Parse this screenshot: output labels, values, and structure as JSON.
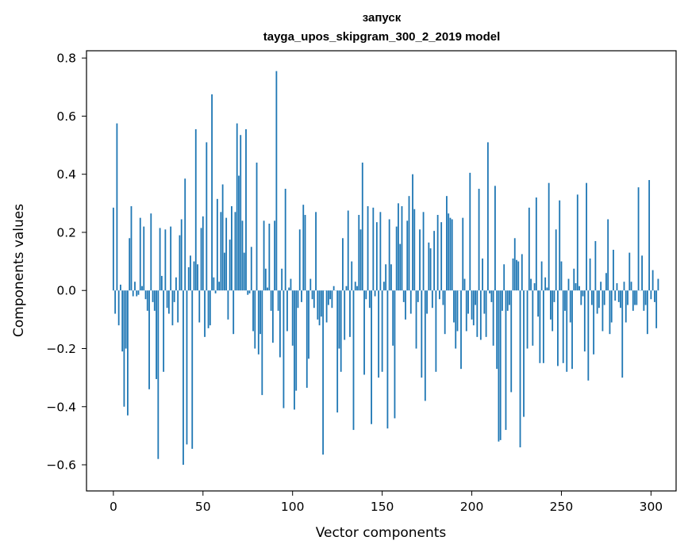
{
  "chart_data": {
    "type": "bar",
    "title": "запуск",
    "subtitle": "tayga_upos_skipgram_300_2_2019 model",
    "xlabel": "Vector components",
    "ylabel": "Components values",
    "xlim": [
      -15,
      314
    ],
    "ylim": [
      -0.69,
      0.825
    ],
    "xticks": [
      0,
      50,
      100,
      150,
      200,
      250,
      300
    ],
    "yticks": [
      -0.6,
      -0.4,
      -0.2,
      0.0,
      0.2,
      0.4,
      0.6,
      0.8
    ],
    "ytick_labels": [
      "−0.6",
      "−0.4",
      "−0.2",
      "0.0",
      "0.2",
      "0.4",
      "0.6",
      "0.8"
    ],
    "bar_color": "#1f77b4",
    "grid": false,
    "legend": "none",
    "values": [
      0.285,
      -0.08,
      0.575,
      -0.12,
      0.02,
      -0.21,
      -0.4,
      -0.2,
      -0.43,
      0.18,
      0.29,
      -0.02,
      0.03,
      -0.02,
      -0.015,
      0.25,
      0.015,
      0.22,
      -0.03,
      -0.07,
      -0.34,
      0.265,
      -0.04,
      -0.07,
      -0.305,
      -0.58,
      0.215,
      0.05,
      -0.28,
      0.21,
      -0.06,
      -0.08,
      0.22,
      -0.12,
      -0.04,
      0.045,
      -0.11,
      0.19,
      0.245,
      -0.6,
      0.385,
      -0.53,
      0.08,
      0.12,
      -0.545,
      0.1,
      0.555,
      0.09,
      -0.11,
      0.215,
      0.255,
      -0.16,
      0.51,
      -0.13,
      -0.12,
      0.675,
      0.045,
      -0.01,
      0.315,
      0.03,
      0.27,
      0.365,
      0.13,
      0.25,
      -0.1,
      0.175,
      0.29,
      -0.15,
      0.27,
      0.575,
      0.395,
      0.535,
      0.24,
      0.13,
      0.555,
      -0.015,
      -0.01,
      0.15,
      -0.14,
      -0.2,
      0.44,
      -0.22,
      -0.15,
      -0.36,
      0.24,
      0.075,
      0.01,
      0.23,
      -0.07,
      -0.18,
      0.24,
      0.755,
      -0.07,
      -0.23,
      0.075,
      -0.405,
      0.35,
      -0.14,
      0.01,
      0.04,
      -0.19,
      -0.41,
      -0.345,
      -0.06,
      0.21,
      -0.04,
      0.295,
      0.26,
      -0.335,
      -0.235,
      0.04,
      -0.03,
      -0.06,
      0.27,
      -0.1,
      -0.12,
      -0.09,
      -0.565,
      0.0,
      -0.11,
      -0.05,
      -0.03,
      -0.06,
      0.015,
      0.0,
      -0.42,
      -0.2,
      -0.28,
      0.18,
      -0.17,
      0.015,
      0.275,
      -0.16,
      0.1,
      -0.48,
      0.03,
      0.015,
      0.26,
      0.21,
      0.44,
      -0.29,
      -0.03,
      0.29,
      -0.06,
      -0.46,
      0.285,
      -0.02,
      0.235,
      -0.3,
      0.27,
      -0.28,
      0.03,
      0.09,
      -0.475,
      0.245,
      0.09,
      -0.19,
      -0.44,
      0.22,
      0.3,
      0.16,
      0.29,
      -0.04,
      -0.1,
      0.24,
      0.325,
      -0.08,
      0.4,
      0.28,
      -0.2,
      -0.04,
      0.21,
      -0.3,
      0.27,
      -0.38,
      -0.08,
      0.165,
      0.145,
      -0.06,
      0.205,
      -0.28,
      0.26,
      -0.03,
      0.235,
      -0.05,
      -0.15,
      0.325,
      0.265,
      0.25,
      0.245,
      -0.11,
      -0.2,
      -0.14,
      0.0,
      -0.27,
      0.25,
      0.04,
      -0.14,
      -0.08,
      0.405,
      -0.1,
      -0.12,
      -0.05,
      -0.16,
      0.35,
      -0.17,
      0.11,
      -0.08,
      -0.16,
      0.51,
      -0.01,
      -0.04,
      -0.19,
      0.36,
      -0.27,
      -0.52,
      -0.515,
      -0.07,
      0.09,
      -0.48,
      -0.07,
      -0.05,
      -0.35,
      0.11,
      0.18,
      0.105,
      0.1,
      -0.54,
      0.125,
      -0.435,
      0.0,
      -0.2,
      0.285,
      0.04,
      -0.19,
      0.025,
      0.32,
      -0.09,
      -0.25,
      0.1,
      -0.25,
      0.045,
      0.01,
      0.37,
      -0.1,
      -0.14,
      -0.04,
      0.21,
      -0.26,
      0.31,
      0.1,
      -0.25,
      -0.07,
      -0.28,
      0.04,
      -0.11,
      -0.27,
      0.075,
      0.025,
      0.33,
      0.015,
      -0.05,
      -0.02,
      -0.21,
      0.37,
      -0.31,
      0.11,
      -0.05,
      -0.22,
      0.17,
      -0.08,
      -0.06,
      0.03,
      -0.14,
      -0.05,
      0.06,
      0.245,
      -0.15,
      -0.11,
      0.14,
      -0.035,
      0.025,
      -0.04,
      -0.06,
      -0.3,
      0.03,
      -0.11,
      -0.05,
      0.13,
      0.03,
      -0.07,
      -0.05,
      -0.05,
      0.355,
      0.0,
      0.12,
      -0.07,
      -0.05,
      -0.15,
      0.38,
      -0.03,
      0.07,
      -0.04,
      -0.13,
      0.04
    ]
  }
}
